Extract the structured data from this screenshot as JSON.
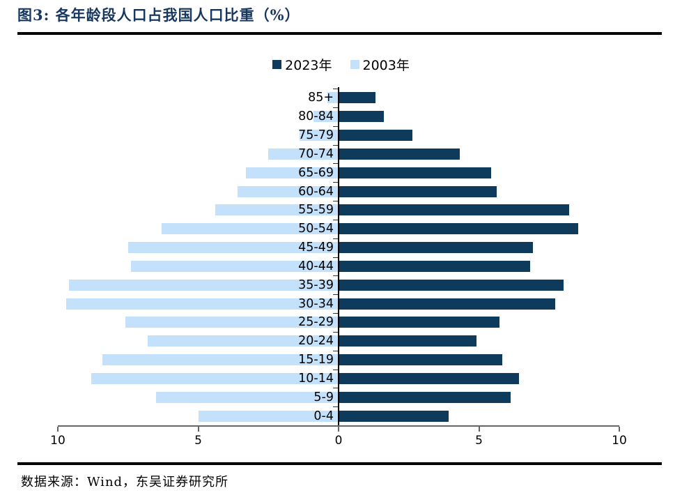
{
  "title": "图3:  各年龄段人口占我国人口比重（%）",
  "title_color": "#17375E",
  "source": "数据来源：Wind，东吴证券研究所",
  "legend": {
    "items": [
      {
        "label": "2023年",
        "color": "#0E3A5C"
      },
      {
        "label": "2003年",
        "color": "#C3E1FA"
      }
    ]
  },
  "chart_data": {
    "type": "bar",
    "subtype": "population-pyramid",
    "title": "各年龄段人口占我国人口比重（%）",
    "categories": [
      "85+",
      "80-84",
      "75-79",
      "70-74",
      "65-69",
      "60-64",
      "55-59",
      "50-54",
      "45-49",
      "40-44",
      "35-39",
      "30-34",
      "25-29",
      "20-24",
      "15-19",
      "10-14",
      "5-9",
      "0-4"
    ],
    "series": [
      {
        "name": "2023年",
        "side": "right",
        "color": "#0E3A5C",
        "values": [
          1.3,
          1.6,
          2.6,
          4.3,
          5.4,
          5.6,
          8.2,
          8.5,
          6.9,
          6.8,
          8.0,
          7.7,
          5.7,
          4.9,
          5.8,
          6.4,
          6.1,
          3.9
        ]
      },
      {
        "name": "2003年",
        "side": "left",
        "color": "#C3E1FA",
        "values": [
          0.4,
          0.9,
          1.4,
          2.5,
          3.3,
          3.6,
          4.4,
          6.3,
          7.5,
          7.4,
          9.6,
          9.7,
          7.6,
          6.8,
          8.4,
          8.8,
          6.5,
          5.0
        ]
      }
    ],
    "x_axis": {
      "tick_labels": [
        "10",
        "5",
        "0",
        "5",
        "10"
      ],
      "tick_values": [
        -10,
        -5,
        0,
        5,
        10
      ],
      "range": [
        -10,
        10
      ],
      "grid": false
    },
    "legend_position": "top-center"
  }
}
